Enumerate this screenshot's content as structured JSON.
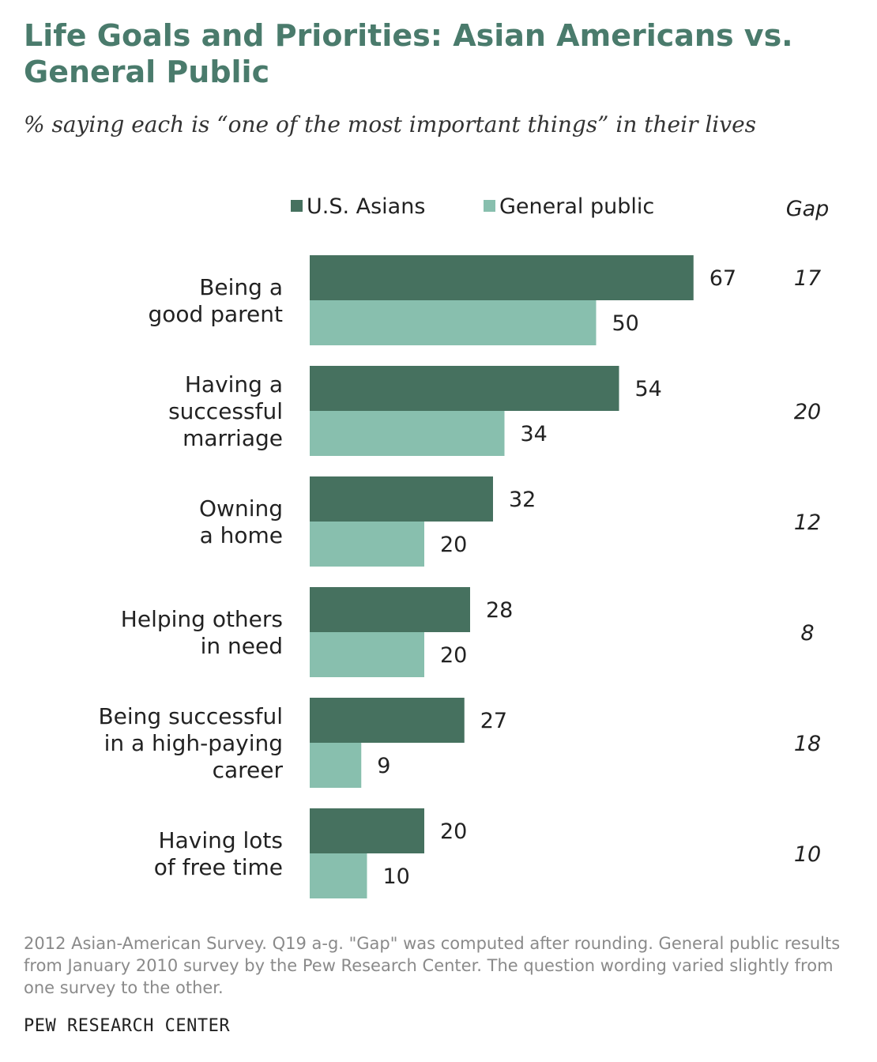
{
  "title": "Life Goals and Priorities: Asian Americans vs. General Public",
  "subtitle": "% saying each is “one of the most important things” in their lives",
  "gap_header": "Gap",
  "notes": "2012 Asian-American Survey. Q19 a-g. \"Gap\" was computed after rounding. General public results from January 2010 survey by the Pew Research Center. The question wording varied slightly from one survey to the other.",
  "source": "PEW RESEARCH CENTER",
  "colors": {
    "us_asians": "#46715f",
    "general_public": "#88bfae",
    "title": "#4a7b6c"
  },
  "chart_data": {
    "type": "bar",
    "orientation": "horizontal",
    "categories": [
      [
        "Being a",
        "good parent"
      ],
      [
        "Having a",
        "successful",
        "marriage"
      ],
      [
        "Owning",
        "a home"
      ],
      [
        "Helping others",
        "in need"
      ],
      [
        "Being successful",
        "in a high-paying",
        "career"
      ],
      [
        "Having lots",
        "of free time"
      ]
    ],
    "series": [
      {
        "name": "U.S. Asians",
        "values": [
          67,
          54,
          32,
          28,
          27,
          20
        ]
      },
      {
        "name": "General public",
        "values": [
          50,
          34,
          20,
          20,
          9,
          10
        ]
      }
    ],
    "gap": [
      17,
      20,
      12,
      8,
      18,
      10
    ],
    "legend_position": "top",
    "grid": false
  }
}
